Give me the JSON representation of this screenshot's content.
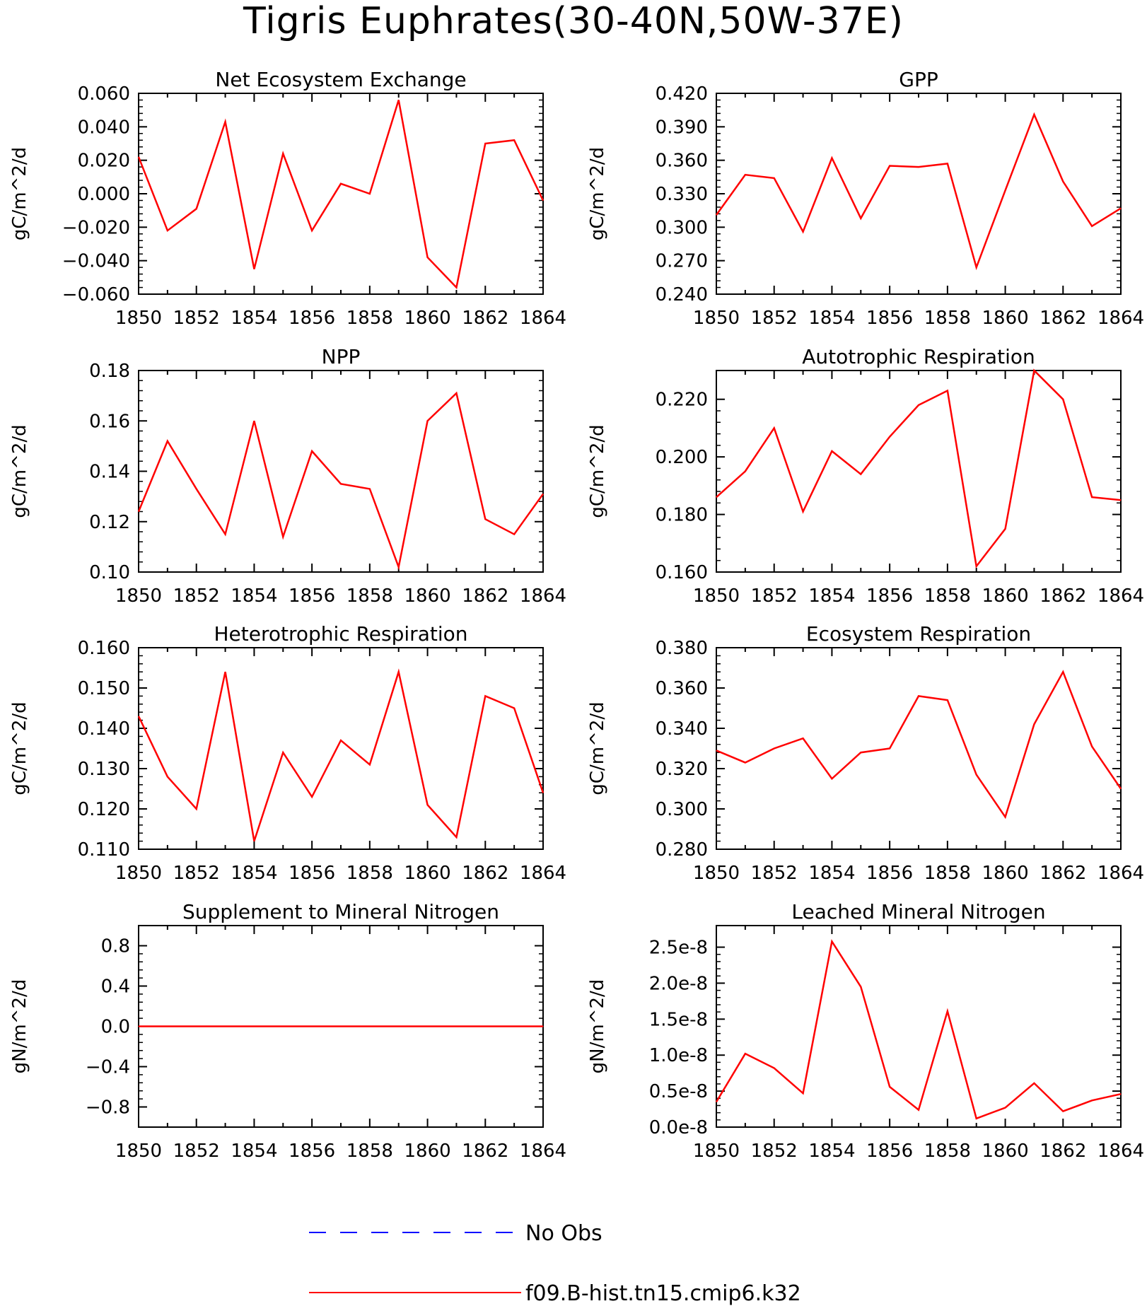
{
  "title": "Tigris Euphrates(30-40N,50W-37E)",
  "legend": [
    {
      "label": "No Obs",
      "color": "#0000ff",
      "style": "dashed"
    },
    {
      "label": "f09.B-hist.tn15.cmip6.k32",
      "color": "#ff0000",
      "style": "solid"
    }
  ],
  "chart_data": [
    {
      "type": "line",
      "title": "Net Ecosystem Exchange",
      "ylabel": "gC/m^2/d",
      "xlim": [
        1850,
        1864
      ],
      "xticks": [
        "1850",
        "1852",
        "1854",
        "1856",
        "1858",
        "1860",
        "1862",
        "1864"
      ],
      "ylim": [
        -0.06,
        0.06
      ],
      "yticks": [
        "-0.060",
        "-0.040",
        "-0.020",
        "0.000",
        "0.020",
        "0.040",
        "0.060"
      ],
      "x": [
        1850,
        1851,
        1852,
        1853,
        1854,
        1855,
        1856,
        1857,
        1858,
        1859,
        1860,
        1861,
        1862,
        1863,
        1864
      ],
      "series": [
        {
          "name": "f09.B-hist.tn15.cmip6.k32",
          "color": "#ff0000",
          "values": [
            0.022,
            -0.022,
            -0.009,
            0.043,
            -0.045,
            0.024,
            -0.022,
            0.006,
            0.0,
            0.056,
            -0.038,
            -0.056,
            0.03,
            0.032,
            -0.004
          ]
        }
      ]
    },
    {
      "type": "line",
      "title": "GPP",
      "ylabel": "gC/m^2/d",
      "xlim": [
        1850,
        1864
      ],
      "xticks": [
        "1850",
        "1852",
        "1854",
        "1856",
        "1858",
        "1860",
        "1862",
        "1864"
      ],
      "ylim": [
        0.24,
        0.42
      ],
      "yticks": [
        "0.240",
        "0.270",
        "0.300",
        "0.330",
        "0.360",
        "0.390",
        "0.420"
      ],
      "x": [
        1850,
        1851,
        1852,
        1853,
        1854,
        1855,
        1856,
        1857,
        1858,
        1859,
        1860,
        1861,
        1862,
        1863,
        1864
      ],
      "series": [
        {
          "name": "f09.B-hist.tn15.cmip6.k32",
          "color": "#ff0000",
          "values": [
            0.311,
            0.347,
            0.344,
            0.296,
            0.362,
            0.308,
            0.355,
            0.354,
            0.357,
            0.264,
            0.333,
            0.401,
            0.341,
            0.301,
            0.317
          ]
        }
      ]
    },
    {
      "type": "line",
      "title": "NPP",
      "ylabel": "gC/m^2/d",
      "xlim": [
        1850,
        1864
      ],
      "xticks": [
        "1850",
        "1852",
        "1854",
        "1856",
        "1858",
        "1860",
        "1862",
        "1864"
      ],
      "ylim": [
        0.1,
        0.18
      ],
      "yticks": [
        "0.10",
        "0.12",
        "0.14",
        "0.16",
        "0.18"
      ],
      "x": [
        1850,
        1851,
        1852,
        1853,
        1854,
        1855,
        1856,
        1857,
        1858,
        1859,
        1860,
        1861,
        1862,
        1863,
        1864
      ],
      "series": [
        {
          "name": "f09.B-hist.tn15.cmip6.k32",
          "color": "#ff0000",
          "values": [
            0.124,
            0.152,
            0.133,
            0.115,
            0.16,
            0.114,
            0.148,
            0.135,
            0.133,
            0.102,
            0.16,
            0.171,
            0.121,
            0.115,
            0.131
          ]
        }
      ]
    },
    {
      "type": "line",
      "title": "Autotrophic Respiration",
      "ylabel": "gC/m^2/d",
      "xlim": [
        1850,
        1864
      ],
      "xticks": [
        "1850",
        "1852",
        "1854",
        "1856",
        "1858",
        "1860",
        "1862",
        "1864"
      ],
      "ylim": [
        0.16,
        0.23
      ],
      "yticks": [
        "0.160",
        "0.180",
        "0.200",
        "0.220"
      ],
      "x": [
        1850,
        1851,
        1852,
        1853,
        1854,
        1855,
        1856,
        1857,
        1858,
        1859,
        1860,
        1861,
        1862,
        1863,
        1864
      ],
      "series": [
        {
          "name": "f09.B-hist.tn15.cmip6.k32",
          "color": "#ff0000",
          "values": [
            0.186,
            0.195,
            0.21,
            0.181,
            0.202,
            0.194,
            0.207,
            0.218,
            0.223,
            0.162,
            0.175,
            0.23,
            0.22,
            0.186,
            0.185
          ]
        }
      ]
    },
    {
      "type": "line",
      "title": "Heterotrophic Respiration",
      "ylabel": "gC/m^2/d",
      "xlim": [
        1850,
        1864
      ],
      "xticks": [
        "1850",
        "1852",
        "1854",
        "1856",
        "1858",
        "1860",
        "1862",
        "1864"
      ],
      "ylim": [
        0.11,
        0.16
      ],
      "yticks": [
        "0.110",
        "0.120",
        "0.130",
        "0.140",
        "0.150",
        "0.160"
      ],
      "x": [
        1850,
        1851,
        1852,
        1853,
        1854,
        1855,
        1856,
        1857,
        1858,
        1859,
        1860,
        1861,
        1862,
        1863,
        1864
      ],
      "series": [
        {
          "name": "f09.B-hist.tn15.cmip6.k32",
          "color": "#ff0000",
          "values": [
            0.143,
            0.128,
            0.12,
            0.154,
            0.112,
            0.134,
            0.123,
            0.137,
            0.131,
            0.154,
            0.121,
            0.113,
            0.148,
            0.145,
            0.124
          ]
        }
      ]
    },
    {
      "type": "line",
      "title": "Ecosystem Respiration",
      "ylabel": "gC/m^2/d",
      "xlim": [
        1850,
        1864
      ],
      "xticks": [
        "1850",
        "1852",
        "1854",
        "1856",
        "1858",
        "1860",
        "1862",
        "1864"
      ],
      "ylim": [
        0.28,
        0.38
      ],
      "yticks": [
        "0.280",
        "0.300",
        "0.320",
        "0.340",
        "0.360",
        "0.380"
      ],
      "x": [
        1850,
        1851,
        1852,
        1853,
        1854,
        1855,
        1856,
        1857,
        1858,
        1859,
        1860,
        1861,
        1862,
        1863,
        1864
      ],
      "series": [
        {
          "name": "f09.B-hist.tn15.cmip6.k32",
          "color": "#ff0000",
          "values": [
            0.329,
            0.323,
            0.33,
            0.335,
            0.315,
            0.328,
            0.33,
            0.356,
            0.354,
            0.317,
            0.296,
            0.342,
            0.368,
            0.331,
            0.31
          ]
        }
      ]
    },
    {
      "type": "line",
      "title": "Supplement to Mineral Nitrogen",
      "ylabel": "gN/m^2/d",
      "xlim": [
        1850,
        1864
      ],
      "xticks": [
        "1850",
        "1852",
        "1854",
        "1856",
        "1858",
        "1860",
        "1862",
        "1864"
      ],
      "ylim": [
        -1.0,
        1.0
      ],
      "yticks": [
        "-0.8",
        "-0.4",
        "0.0",
        "0.4",
        "0.8"
      ],
      "ytick_values": [
        -0.8,
        -0.4,
        0.0,
        0.4,
        0.8
      ],
      "x": [
        1850,
        1851,
        1852,
        1853,
        1854,
        1855,
        1856,
        1857,
        1858,
        1859,
        1860,
        1861,
        1862,
        1863,
        1864
      ],
      "series": [
        {
          "name": "f09.B-hist.tn15.cmip6.k32",
          "color": "#ff0000",
          "values": [
            0,
            0,
            0,
            0,
            0,
            0,
            0,
            0,
            0,
            0,
            0,
            0,
            0,
            0,
            0
          ]
        }
      ]
    },
    {
      "type": "line",
      "title": "Leached Mineral Nitrogen",
      "ylabel": "gN/m^2/d",
      "xlim": [
        1850,
        1864
      ],
      "xticks": [
        "1850",
        "1852",
        "1854",
        "1856",
        "1858",
        "1860",
        "1862",
        "1864"
      ],
      "ylim": [
        0.0,
        2.8e-08
      ],
      "yticks": [
        "0.0e-8",
        "0.5e-8",
        "1.0e-8",
        "1.5e-8",
        "2.0e-8",
        "2.5e-8"
      ],
      "ytick_values": [
        0.0,
        5e-09,
        1e-08,
        1.5e-08,
        2e-08,
        2.5e-08
      ],
      "x": [
        1850,
        1851,
        1852,
        1853,
        1854,
        1855,
        1856,
        1857,
        1858,
        1859,
        1860,
        1861,
        1862,
        1863,
        1864
      ],
      "series": [
        {
          "name": "f09.B-hist.tn15.cmip6.k32",
          "color": "#ff0000",
          "values": [
            3.5e-09,
            1.02e-08,
            8.2e-09,
            4.7e-09,
            2.58e-08,
            1.95e-08,
            5.6e-09,
            2.4e-09,
            1.61e-08,
            1.2e-09,
            2.7e-09,
            6.1e-09,
            2.2e-09,
            3.7e-09,
            4.6e-09
          ]
        }
      ]
    }
  ]
}
